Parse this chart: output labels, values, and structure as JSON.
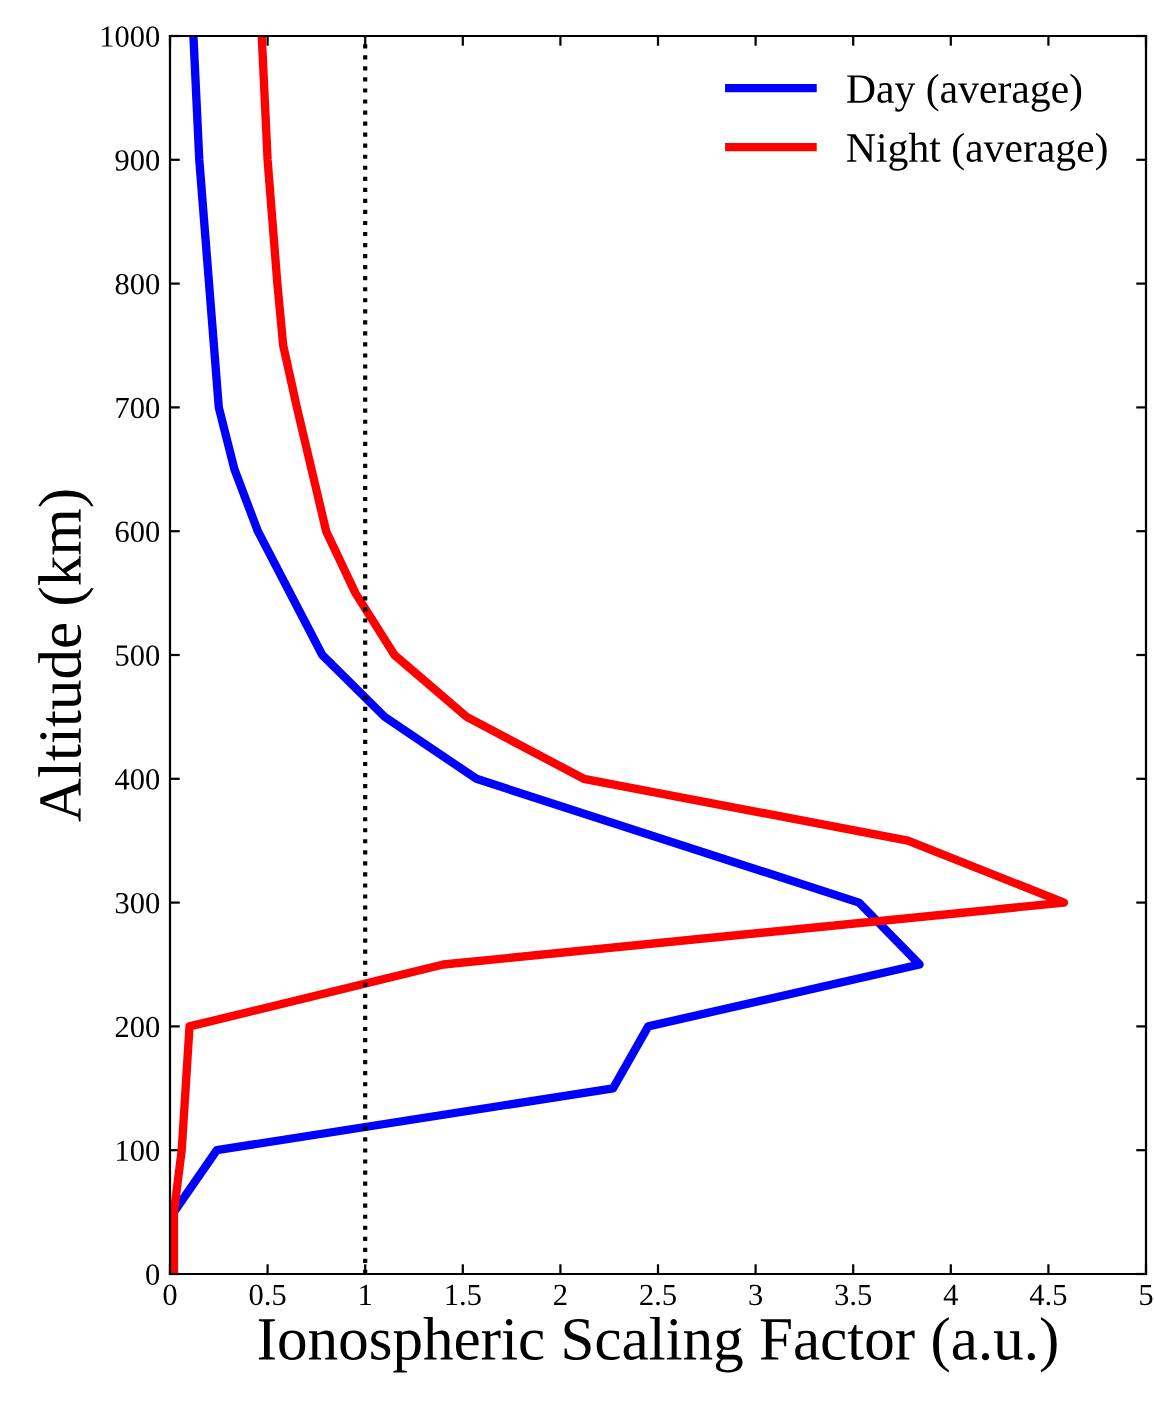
{
  "chart_data": {
    "type": "line",
    "xlabel": "Ionospheric Scaling Factor (a.u.)",
    "ylabel": "Altitude (km)",
    "xlim": [
      0,
      5
    ],
    "ylim": [
      0,
      1000
    ],
    "xticks": [
      0,
      0.5,
      1,
      1.5,
      2,
      2.5,
      3,
      3.5,
      4,
      4.5,
      5
    ],
    "yticks": [
      0,
      100,
      200,
      300,
      400,
      500,
      600,
      700,
      800,
      900,
      1000
    ],
    "grid": false,
    "legend": "top right",
    "line_style": "solid",
    "marker": "none",
    "ref_lines": [
      {
        "axis": "x",
        "value": 1,
        "color": "#000000",
        "line_style": "dotted"
      }
    ],
    "series": [
      {
        "name": "Day (average)",
        "color": "#0000ff",
        "x": [
          0.02,
          0.02,
          0.24,
          2.27,
          2.45,
          3.84,
          3.53,
          1.57,
          1.1,
          0.78,
          0.45,
          0.33,
          0.25,
          0.2,
          0.15,
          0.12
        ],
        "values": [
          0,
          50,
          100,
          150,
          200,
          250,
          300,
          400,
          450,
          500,
          600,
          650,
          700,
          800,
          900,
          1000
        ]
      },
      {
        "name": "Night (average)",
        "color": "#ff0000",
        "x": [
          0.02,
          0.02,
          0.06,
          0.1,
          1.4,
          4.58,
          3.78,
          2.12,
          1.52,
          1.15,
          0.95,
          0.8,
          0.65,
          0.58,
          0.55,
          0.5,
          0.47
        ],
        "values": [
          0,
          50,
          100,
          200,
          250,
          300,
          350,
          400,
          450,
          500,
          550,
          600,
          700,
          750,
          800,
          900,
          1000
        ]
      }
    ]
  }
}
